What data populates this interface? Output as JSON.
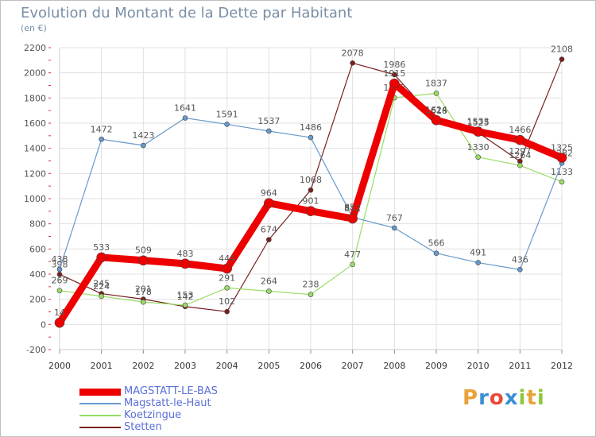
{
  "header": {
    "title": "Evolution du Montant de la Dette par Habitant",
    "subtitle": "(en €)"
  },
  "logo": {
    "text": "Proxiti",
    "colors": [
      "#e8a23a",
      "#3a8fd8",
      "#e84a3a",
      "#3a8fd8",
      "#8cc83a",
      "#e8a23a",
      "#8cc83a"
    ]
  },
  "chart_data": {
    "type": "line",
    "title": "Evolution du Montant de la Dette par Habitant",
    "ylabel": "(en €)",
    "xlabel": "",
    "categories": [
      "2000",
      "2001",
      "2002",
      "2003",
      "2004",
      "2005",
      "2006",
      "2007",
      "2008",
      "2009",
      "2010",
      "2011",
      "2012"
    ],
    "ylim": [
      -200,
      2200
    ],
    "yticks": [
      -200,
      0,
      200,
      400,
      600,
      800,
      1000,
      1200,
      1400,
      1600,
      1800,
      2000,
      2200
    ],
    "grid": true,
    "legend_position": "bottom-left",
    "series": [
      {
        "name": "Stetten",
        "color": "#7a1f1f",
        "values": [
          398,
          245,
          201,
          142,
          102,
          674,
          1068,
          2078,
          1986,
          1618,
          1525,
          1297,
          null
        ],
        "labels": [
          "398",
          "245",
          "201",
          "142",
          "102",
          "674",
          "1068",
          "2078",
          "1986",
          "1618",
          "1525",
          "1297",
          "2108"
        ],
        "final_value": 2108
      },
      {
        "name": "Koetzingue",
        "color": "#99dd66",
        "values": [
          269,
          224,
          178,
          153,
          291,
          264,
          238,
          477,
          1802,
          1837,
          1330,
          1264,
          1133
        ],
        "labels": [
          "269",
          "224",
          "178",
          "153",
          "291",
          "264",
          "238",
          "477",
          "1802",
          "1837",
          "1330",
          "1264",
          "1133"
        ]
      },
      {
        "name": "Magstatt-le-Haut",
        "color": "#6699cc",
        "values": [
          438,
          1472,
          1423,
          1641,
          1591,
          1537,
          1486,
          852,
          767,
          566,
          491,
          436,
          1282
        ],
        "labels": [
          "438",
          "1472",
          "1423",
          "1641",
          "1591",
          "1537",
          "1486",
          "852",
          "767",
          "566",
          "491",
          "436",
          "1282"
        ]
      },
      {
        "name": "MAGSTATT-LE-BAS",
        "color": "#ee0000",
        "values": [
          14,
          533,
          509,
          483,
          444,
          964,
          901,
          842,
          1915,
          1624,
          1533,
          1466,
          1325
        ],
        "labels": [
          "14",
          "533",
          "509",
          "483",
          "444",
          "964",
          "901",
          "842",
          "1915",
          "1624",
          "1533",
          "1466",
          "1325"
        ]
      }
    ]
  },
  "legend": [
    {
      "label": "MAGSTATT-LE-BAS",
      "color": "#ee0000"
    },
    {
      "label": "Magstatt-le-Haut",
      "color": "#6699cc"
    },
    {
      "label": "Koetzingue",
      "color": "#99dd66"
    },
    {
      "label": "Stetten",
      "color": "#7a1f1f"
    }
  ]
}
